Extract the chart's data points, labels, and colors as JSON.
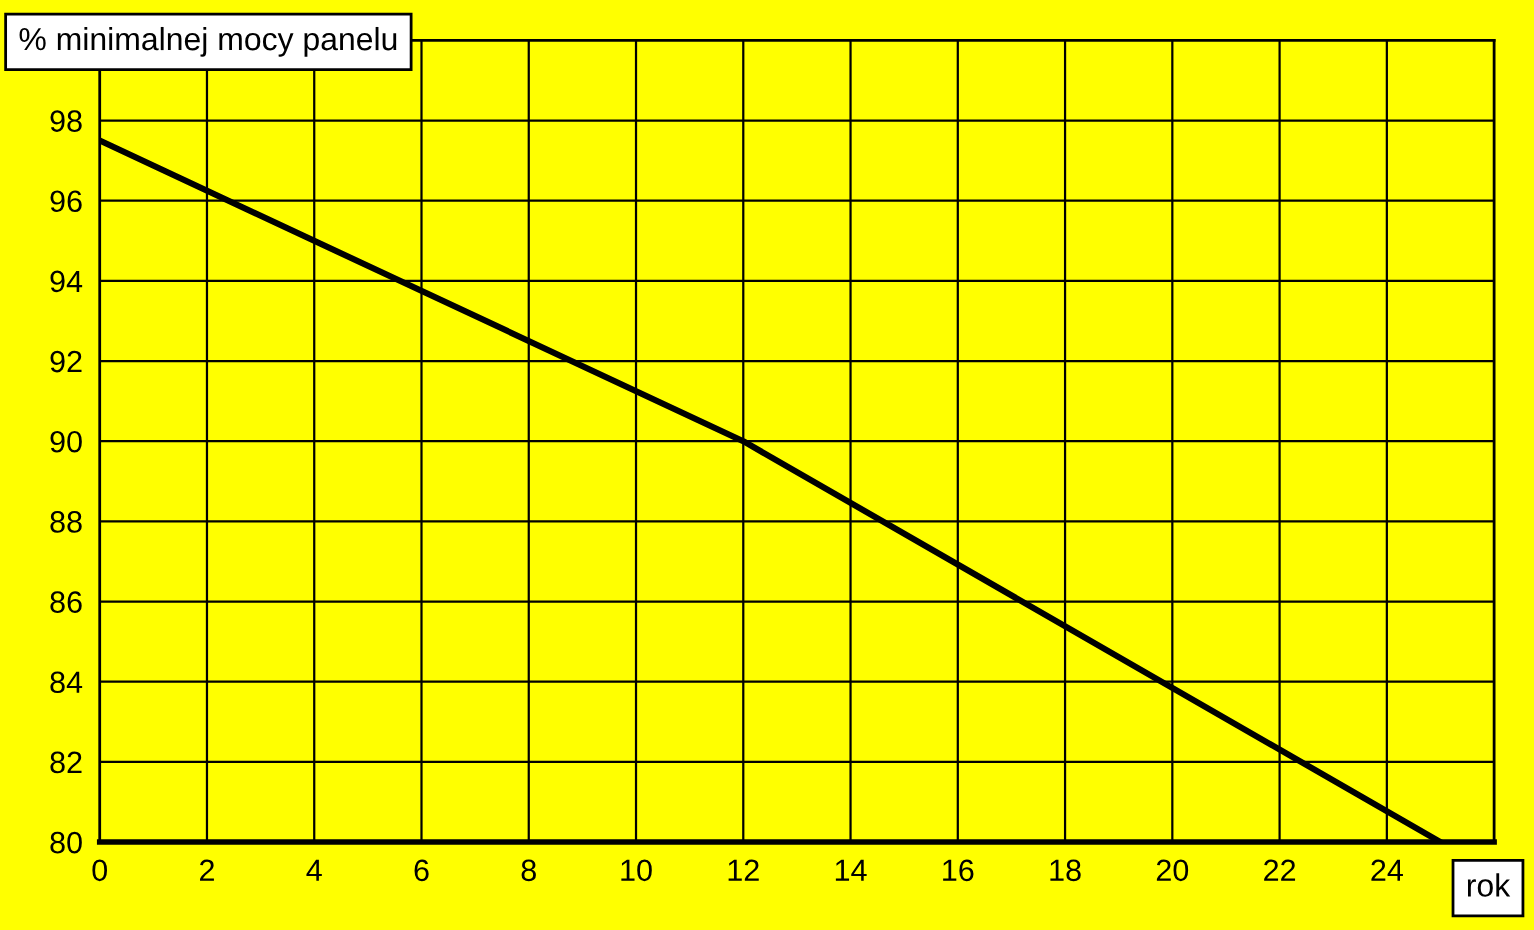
{
  "chart_data": {
    "type": "line",
    "xlabel": "rok",
    "ylabel": "% minimalnej mocy panelu",
    "x": [
      0,
      12,
      25
    ],
    "series": [
      {
        "color": "#000000",
        "values": [
          97.5,
          90,
          80
        ]
      }
    ],
    "xlim": [
      0,
      26
    ],
    "xticks": [
      0,
      2,
      4,
      6,
      8,
      10,
      12,
      14,
      16,
      18,
      20,
      22,
      24
    ],
    "ylim": [
      80,
      100
    ],
    "yticks": [
      80,
      82,
      84,
      86,
      88,
      90,
      92,
      94,
      96,
      98
    ],
    "grid": true,
    "marker": "none",
    "line_style": "solid"
  }
}
